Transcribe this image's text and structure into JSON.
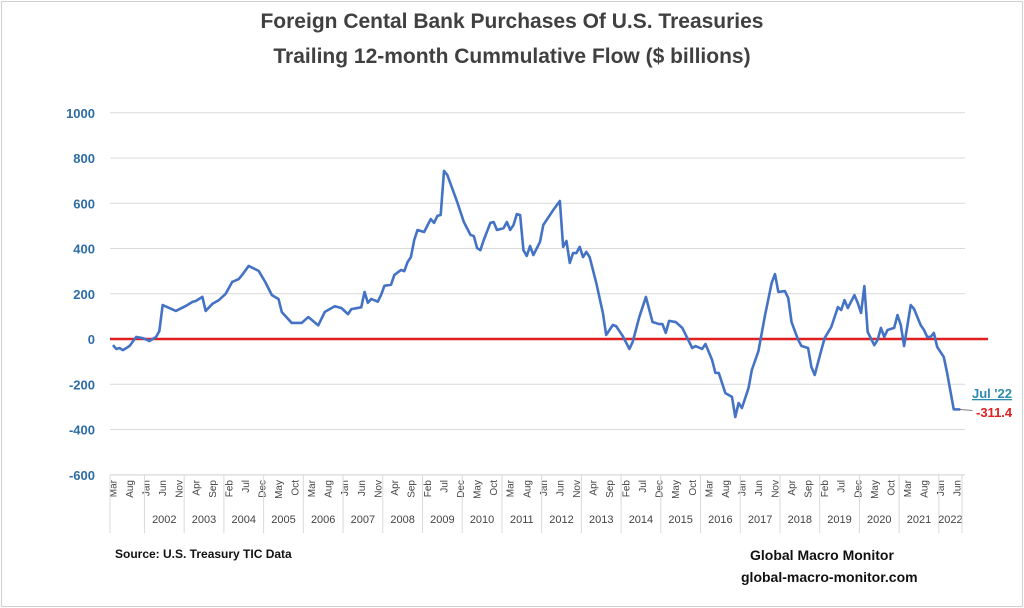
{
  "chart_data": {
    "type": "line",
    "title": "Foreign Cental Bank Purchases Of U.S. Treasuries",
    "subtitle": "Trailing 12-month Cummulative Flow ($ billions)",
    "ylim": [
      -600,
      1000
    ],
    "y_ticks": [
      "1000",
      "800",
      "600",
      "400",
      "200",
      "0",
      "-200",
      "-400",
      "-600"
    ],
    "grid": true,
    "x_month_labels": [
      "Mar",
      "Aug",
      "Jan",
      "Jun",
      "Nov",
      "Apr",
      "Sep",
      "Feb",
      "Jul",
      "Dec",
      "May",
      "Oct",
      "Mar",
      "Aug",
      "Jan",
      "Jun",
      "Nov",
      "Apr",
      "Sep",
      "Feb",
      "Jul",
      "Dec",
      "May",
      "Oct",
      "Mar",
      "Aug",
      "Jan",
      "Jun",
      "Nov",
      "Apr",
      "Sep",
      "Feb",
      "Jul",
      "Dec",
      "May",
      "Oct",
      "Mar",
      "Aug",
      "Jan",
      "Jun",
      "Nov",
      "Apr",
      "Sep",
      "Feb",
      "Jul",
      "Dec",
      "May",
      "Oct",
      "Mar",
      "Aug",
      "Jan",
      "Jun"
    ],
    "x_year_labels": [
      "2002",
      "2003",
      "2004",
      "2005",
      "2006",
      "2007",
      "2008",
      "2009",
      "2010",
      "2011",
      "2012",
      "2013",
      "2014",
      "2015",
      "2016",
      "2017",
      "2018",
      "2019",
      "2020",
      "2021",
      "2022"
    ],
    "x_start": "2001-03",
    "series_color": "#4472c4",
    "zero_line_color": "#e02020",
    "series": [
      {
        "points": [
          [
            "2001-03",
            -27
          ],
          [
            "2001-04",
            -44
          ],
          [
            "2001-05",
            -40
          ],
          [
            "2001-06",
            -49
          ],
          [
            "2001-08",
            -31
          ],
          [
            "2001-10",
            9
          ],
          [
            "2001-12",
            4
          ],
          [
            "2002-02",
            -9
          ],
          [
            "2002-04",
            9
          ],
          [
            "2002-05",
            35
          ],
          [
            "2002-06",
            150
          ],
          [
            "2002-10",
            124
          ],
          [
            "2003-01",
            146
          ],
          [
            "2003-03",
            164
          ],
          [
            "2003-04",
            168
          ],
          [
            "2003-06",
            186
          ],
          [
            "2003-07",
            124
          ],
          [
            "2003-09",
            155
          ],
          [
            "2003-11",
            172
          ],
          [
            "2004-01",
            199
          ],
          [
            "2004-03",
            252
          ],
          [
            "2004-05",
            265
          ],
          [
            "2004-06",
            283
          ],
          [
            "2004-08",
            323
          ],
          [
            "2004-11",
            301
          ],
          [
            "2005-01",
            252
          ],
          [
            "2005-03",
            194
          ],
          [
            "2005-05",
            177
          ],
          [
            "2005-06",
            119
          ],
          [
            "2005-09",
            71
          ],
          [
            "2005-12",
            71
          ],
          [
            "2006-02",
            97
          ],
          [
            "2006-05",
            60
          ],
          [
            "2006-07",
            120
          ],
          [
            "2006-10",
            145
          ],
          [
            "2006-12",
            137
          ],
          [
            "2007-02",
            110
          ],
          [
            "2007-03",
            132
          ],
          [
            "2007-06",
            140
          ],
          [
            "2007-07",
            208
          ],
          [
            "2007-08",
            160
          ],
          [
            "2007-09",
            177
          ],
          [
            "2007-11",
            165
          ],
          [
            "2007-12",
            195
          ],
          [
            "2008-01",
            235
          ],
          [
            "2008-03",
            240
          ],
          [
            "2008-04",
            283
          ],
          [
            "2008-06",
            305
          ],
          [
            "2008-07",
            300
          ],
          [
            "2008-08",
            340
          ],
          [
            "2008-09",
            362
          ],
          [
            "2008-10",
            437
          ],
          [
            "2008-11",
            482
          ],
          [
            "2009-01",
            473
          ],
          [
            "2009-03",
            530
          ],
          [
            "2009-04",
            513
          ],
          [
            "2009-05",
            544
          ],
          [
            "2009-06",
            548
          ],
          [
            "2009-07",
            743
          ],
          [
            "2009-08",
            725
          ],
          [
            "2009-10",
            645
          ],
          [
            "2009-11",
            605
          ],
          [
            "2010-01",
            517
          ],
          [
            "2010-03",
            460
          ],
          [
            "2010-04",
            455
          ],
          [
            "2010-05",
            402
          ],
          [
            "2010-06",
            393
          ],
          [
            "2010-07",
            437
          ],
          [
            "2010-09",
            513
          ],
          [
            "2010-10",
            517
          ],
          [
            "2010-11",
            482
          ],
          [
            "2011-01",
            490
          ],
          [
            "2011-02",
            517
          ],
          [
            "2011-03",
            482
          ],
          [
            "2011-04",
            504
          ],
          [
            "2011-05",
            552
          ],
          [
            "2011-06",
            548
          ],
          [
            "2011-07",
            393
          ],
          [
            "2011-08",
            367
          ],
          [
            "2011-09",
            411
          ],
          [
            "2011-10",
            371
          ],
          [
            "2011-12",
            429
          ],
          [
            "2012-01",
            504
          ],
          [
            "2012-02",
            526
          ],
          [
            "2012-04",
            570
          ],
          [
            "2012-06",
            610
          ],
          [
            "2012-07",
            407
          ],
          [
            "2012-08",
            433
          ],
          [
            "2012-09",
            336
          ],
          [
            "2012-10",
            380
          ],
          [
            "2012-11",
            380
          ],
          [
            "2012-12",
            407
          ],
          [
            "2013-01",
            362
          ],
          [
            "2013-02",
            385
          ],
          [
            "2013-03",
            362
          ],
          [
            "2013-05",
            248
          ],
          [
            "2013-07",
            115
          ],
          [
            "2013-08",
            18
          ],
          [
            "2013-10",
            62
          ],
          [
            "2013-11",
            57
          ],
          [
            "2014-01",
            13
          ],
          [
            "2014-03",
            -44
          ],
          [
            "2014-04",
            -13
          ],
          [
            "2014-06",
            97
          ],
          [
            "2014-08",
            186
          ],
          [
            "2014-10",
            75
          ],
          [
            "2014-12",
            66
          ],
          [
            "2015-01",
            66
          ],
          [
            "2015-02",
            27
          ],
          [
            "2015-03",
            80
          ],
          [
            "2015-05",
            75
          ],
          [
            "2015-07",
            49
          ],
          [
            "2015-10",
            -40
          ],
          [
            "2015-11",
            -31
          ],
          [
            "2016-01",
            -44
          ],
          [
            "2016-02",
            -22
          ],
          [
            "2016-04",
            -93
          ],
          [
            "2016-05",
            -150
          ],
          [
            "2016-06",
            -150
          ],
          [
            "2016-08",
            -239
          ],
          [
            "2016-10",
            -256
          ],
          [
            "2016-11",
            -345
          ],
          [
            "2016-12",
            -283
          ],
          [
            "2017-01",
            -305
          ],
          [
            "2017-03",
            -217
          ],
          [
            "2017-04",
            -137
          ],
          [
            "2017-06",
            -53
          ],
          [
            "2017-08",
            106
          ],
          [
            "2017-10",
            248
          ],
          [
            "2017-11",
            287
          ],
          [
            "2017-12",
            208
          ],
          [
            "2018-02",
            212
          ],
          [
            "2018-03",
            181
          ],
          [
            "2018-04",
            75
          ],
          [
            "2018-06",
            -4
          ],
          [
            "2018-07",
            -31
          ],
          [
            "2018-09",
            -40
          ],
          [
            "2018-10",
            -124
          ],
          [
            "2018-11",
            -159
          ],
          [
            "2019-01",
            -49
          ],
          [
            "2019-02",
            4
          ],
          [
            "2019-04",
            53
          ],
          [
            "2019-06",
            141
          ],
          [
            "2019-07",
            128
          ],
          [
            "2019-08",
            172
          ],
          [
            "2019-09",
            137
          ],
          [
            "2019-11",
            194
          ],
          [
            "2019-12",
            159
          ],
          [
            "2020-01",
            115
          ],
          [
            "2020-02",
            234
          ],
          [
            "2020-03",
            31
          ],
          [
            "2020-05",
            -27
          ],
          [
            "2020-06",
            -4
          ],
          [
            "2020-07",
            49
          ],
          [
            "2020-08",
            9
          ],
          [
            "2020-09",
            40
          ],
          [
            "2020-11",
            49
          ],
          [
            "2020-12",
            106
          ],
          [
            "2021-01",
            62
          ],
          [
            "2021-02",
            -31
          ],
          [
            "2021-04",
            150
          ],
          [
            "2021-05",
            133
          ],
          [
            "2021-07",
            62
          ],
          [
            "2021-08",
            40
          ],
          [
            "2021-09",
            9
          ],
          [
            "2021-10",
            9
          ],
          [
            "2021-11",
            27
          ],
          [
            "2021-12",
            -35
          ],
          [
            "2022-02",
            -80
          ],
          [
            "2022-03",
            -150
          ],
          [
            "2022-05",
            -311
          ],
          [
            "2022-07",
            -311.4
          ]
        ]
      }
    ],
    "annotations": {
      "last_label": "Jul '22",
      "last_value": "-311.4",
      "last_label_color": "#2e8bb0",
      "last_value_color": "#e02020"
    }
  },
  "footer": {
    "source": "Source:  U.S. Treasury TIC Data",
    "brand": "Global Macro Monitor",
    "url": "global-macro-monitor.com"
  }
}
